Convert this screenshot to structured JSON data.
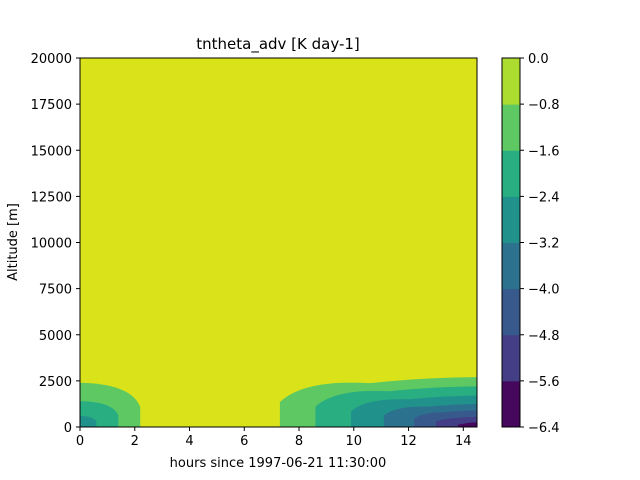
{
  "chart_data": {
    "type": "heatmap",
    "subtype": "filled-contour",
    "title": "tntheta_adv [K day-1]",
    "xlabel": "hours since 1997-06-21 11:30:00",
    "ylabel": "Altitude [m]",
    "xlim": [
      0,
      14.5
    ],
    "ylim": [
      0,
      20000
    ],
    "x_ticks": [
      "0",
      "2",
      "4",
      "6",
      "8",
      "10",
      "12",
      "14"
    ],
    "y_ticks": [
      "0",
      "2500",
      "5000",
      "7500",
      "10000",
      "12500",
      "15000",
      "17500",
      "20000"
    ],
    "colorbar": {
      "levels": [
        -6.4,
        -5.6,
        -4.8,
        -4.0,
        -3.2,
        -2.4,
        -1.6,
        -0.8,
        0.0
      ],
      "tick_labels": [
        "−6.4",
        "−5.6",
        "−4.8",
        "−4.0",
        "−3.2",
        "−2.4",
        "−1.6",
        "−0.8",
        "0.0"
      ],
      "colors": [
        "#46085c",
        "#433e85",
        "#38598c",
        "#2c728e",
        "#21918c",
        "#28ae80",
        "#5ec962",
        "#addc30"
      ],
      "background_color": "#dae319"
    },
    "regions": [
      {
        "name": "left-lower-boundary-anomaly",
        "x_range": [
          0,
          2.2
        ],
        "bands": [
          {
            "band": "-1.6 to -0.8",
            "x_extent": 2.2,
            "top_altitude": 2400
          },
          {
            "band": "-2.4 to -1.6",
            "x_extent": 1.4,
            "top_altitude": 1400
          },
          {
            "band": "-3.2 to -2.4",
            "x_extent": 0.6,
            "top_altitude": 600
          }
        ]
      },
      {
        "name": "right-lower-boundary-anomaly",
        "x_range": [
          7.3,
          14.5
        ],
        "bands": [
          {
            "band": "-1.6 to -0.8",
            "x_start": 7.3,
            "top_altitude": 2700
          },
          {
            "band": "-2.4 to -1.6",
            "x_start": 8.6,
            "top_altitude": 2200
          },
          {
            "band": "-3.2 to -2.4",
            "x_start": 9.9,
            "top_altitude": 1700
          },
          {
            "band": "-4.0 to -3.2",
            "x_start": 11.1,
            "top_altitude": 1250
          },
          {
            "band": "-4.8 to -4.0",
            "x_start": 12.2,
            "top_altitude": 900
          },
          {
            "band": "-5.6 to -4.8",
            "x_start": 13.0,
            "top_altitude": 550
          },
          {
            "band": "-6.4 to -5.6",
            "x_start": 13.8,
            "top_altitude": 250
          }
        ]
      }
    ],
    "grid": false,
    "colormap": "viridis"
  }
}
